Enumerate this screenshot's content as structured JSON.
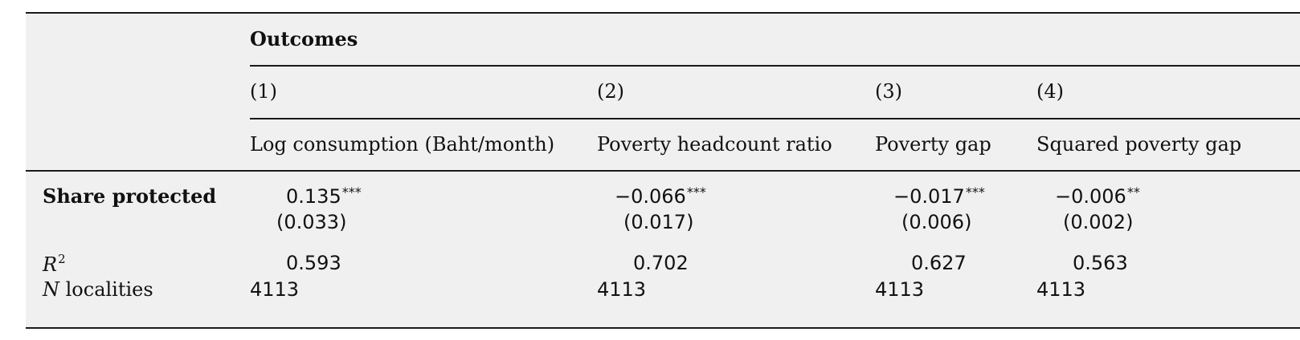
{
  "table": {
    "group_header": "Outcomes",
    "column_numbers": [
      "(1)",
      "(2)",
      "(3)",
      "(4)"
    ],
    "column_labels": [
      "Log consumption (Baht/month)",
      "Poverty headcount ratio",
      "Poverty gap",
      "Squared poverty gap"
    ],
    "rows": {
      "share_protected": {
        "label": "Share protected",
        "coefficients": [
          "0.135",
          "−0.066",
          "−0.017",
          "−0.006"
        ],
        "stars": [
          "***",
          "***",
          "***",
          "**"
        ],
        "std_errors": [
          "(0.033)",
          "(0.017)",
          "(0.006)",
          "(0.002)"
        ]
      },
      "r2": {
        "label_var": "R",
        "label_sup": "2",
        "values": [
          "0.593",
          "0.702",
          "0.627",
          "0.563"
        ]
      },
      "n": {
        "label_var": "N",
        "label_rest": " localities",
        "values": [
          "4113",
          "4113",
          "4113",
          "4113"
        ]
      }
    }
  }
}
